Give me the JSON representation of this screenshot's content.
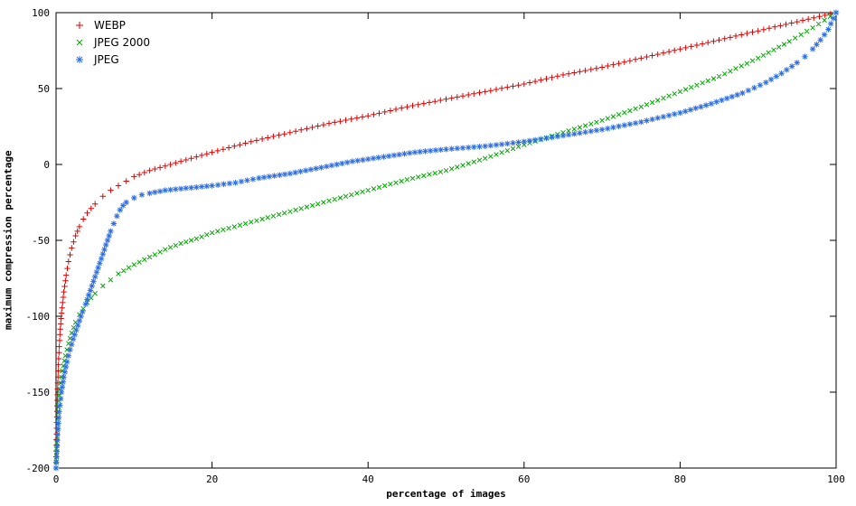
{
  "chart_data": {
    "type": "scatter",
    "title": "",
    "xlabel": "percentage of images",
    "ylabel": "maximum compression percentage",
    "xlim": [
      0,
      100
    ],
    "ylim": [
      -200,
      100
    ],
    "xticks": [
      0,
      20,
      40,
      60,
      80,
      100
    ],
    "yticks": [
      100,
      50,
      0,
      -50,
      -100,
      -150,
      -200
    ],
    "grid": false,
    "legend_position": "top-left-inside",
    "border_color": "#000000",
    "background_color": "#ffffff",
    "series": [
      {
        "name": "WEBP",
        "marker": "plus",
        "color": "#e00000",
        "points": [
          [
            0,
            -200
          ],
          [
            0.1,
            -170
          ],
          [
            0.2,
            -148
          ],
          [
            0.3,
            -132
          ],
          [
            0.5,
            -112
          ],
          [
            0.7,
            -98
          ],
          [
            1,
            -84
          ],
          [
            1.3,
            -73
          ],
          [
            1.6,
            -64
          ],
          [
            2,
            -55
          ],
          [
            2.5,
            -47
          ],
          [
            3,
            -41
          ],
          [
            3.5,
            -36
          ],
          [
            4,
            -32
          ],
          [
            5,
            -26
          ],
          [
            6,
            -21
          ],
          [
            7,
            -17
          ],
          [
            8,
            -14
          ],
          [
            9,
            -11
          ],
          [
            10,
            -8
          ],
          [
            12,
            -4
          ],
          [
            14,
            -1
          ],
          [
            16,
            2
          ],
          [
            18,
            5
          ],
          [
            20,
            8
          ],
          [
            25,
            15
          ],
          [
            30,
            21
          ],
          [
            35,
            27
          ],
          [
            40,
            32
          ],
          [
            45,
            38
          ],
          [
            50,
            43
          ],
          [
            55,
            48
          ],
          [
            60,
            53
          ],
          [
            65,
            59
          ],
          [
            70,
            64
          ],
          [
            75,
            70
          ],
          [
            80,
            76
          ],
          [
            85,
            82
          ],
          [
            90,
            88
          ],
          [
            95,
            94
          ],
          [
            100,
            100
          ]
        ]
      },
      {
        "name": "JPEG 2000",
        "marker": "cross",
        "color": "#00a800",
        "points": [
          [
            0,
            -200
          ],
          [
            0.15,
            -175
          ],
          [
            0.3,
            -160
          ],
          [
            0.5,
            -148
          ],
          [
            0.8,
            -136
          ],
          [
            1.2,
            -126
          ],
          [
            1.6,
            -118
          ],
          [
            2,
            -111
          ],
          [
            2.5,
            -104
          ],
          [
            3,
            -99
          ],
          [
            4,
            -91
          ],
          [
            5,
            -85
          ],
          [
            6,
            -80
          ],
          [
            7,
            -76
          ],
          [
            8,
            -72
          ],
          [
            10,
            -66
          ],
          [
            12,
            -61
          ],
          [
            14,
            -56
          ],
          [
            16,
            -52
          ],
          [
            18,
            -49
          ],
          [
            20,
            -45
          ],
          [
            25,
            -38
          ],
          [
            30,
            -31
          ],
          [
            35,
            -24
          ],
          [
            40,
            -17
          ],
          [
            45,
            -10
          ],
          [
            50,
            -4
          ],
          [
            55,
            4
          ],
          [
            60,
            13
          ],
          [
            65,
            21
          ],
          [
            70,
            29
          ],
          [
            75,
            38
          ],
          [
            80,
            48
          ],
          [
            85,
            58
          ],
          [
            90,
            70
          ],
          [
            94,
            81
          ],
          [
            97,
            90
          ],
          [
            100,
            100
          ]
        ]
      },
      {
        "name": "JPEG",
        "marker": "asterisk",
        "color": "#2f6fe0",
        "points": [
          [
            0,
            -200
          ],
          [
            0.2,
            -178
          ],
          [
            0.4,
            -163
          ],
          [
            0.7,
            -150
          ],
          [
            1,
            -140
          ],
          [
            1.4,
            -130
          ],
          [
            1.8,
            -122
          ],
          [
            2.2,
            -115
          ],
          [
            2.6,
            -109
          ],
          [
            3,
            -103
          ],
          [
            3.4,
            -97
          ],
          [
            3.8,
            -92
          ],
          [
            4.2,
            -86
          ],
          [
            4.6,
            -80
          ],
          [
            5,
            -74
          ],
          [
            5.4,
            -68
          ],
          [
            5.8,
            -62
          ],
          [
            6.2,
            -56
          ],
          [
            6.6,
            -50
          ],
          [
            7,
            -44
          ],
          [
            7.4,
            -39
          ],
          [
            7.8,
            -34
          ],
          [
            8.2,
            -30
          ],
          [
            8.6,
            -27
          ],
          [
            9,
            -25
          ],
          [
            10,
            -22
          ],
          [
            11,
            -20
          ],
          [
            12,
            -19
          ],
          [
            14,
            -17
          ],
          [
            16,
            -16
          ],
          [
            18,
            -15
          ],
          [
            20,
            -14
          ],
          [
            23,
            -12
          ],
          [
            26,
            -9
          ],
          [
            30,
            -6
          ],
          [
            34,
            -2
          ],
          [
            38,
            2
          ],
          [
            42,
            5
          ],
          [
            46,
            8
          ],
          [
            50,
            10
          ],
          [
            55,
            12
          ],
          [
            60,
            15
          ],
          [
            65,
            19
          ],
          [
            70,
            23
          ],
          [
            75,
            28
          ],
          [
            80,
            34
          ],
          [
            84,
            40
          ],
          [
            88,
            47
          ],
          [
            91,
            54
          ],
          [
            93,
            60
          ],
          [
            95,
            67
          ],
          [
            96,
            71
          ],
          [
            97,
            76
          ],
          [
            98,
            82
          ],
          [
            99,
            89
          ],
          [
            100,
            100
          ]
        ]
      }
    ]
  }
}
